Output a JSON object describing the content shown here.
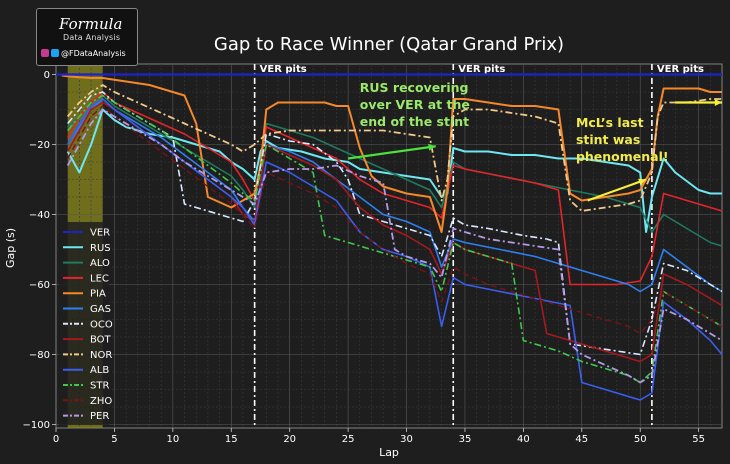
{
  "logo": {
    "brand": "Formula",
    "subtitle": "Data Analysis",
    "handle": "@FDataAnalysis",
    "icons": [
      "instagram-icon",
      "twitter-icon"
    ]
  },
  "chart_data": {
    "type": "line",
    "title": "Gap to Race Winner (Qatar Grand Prix)",
    "xlabel": "Lap",
    "ylabel": "Gap (s)",
    "xlim": [
      0,
      57
    ],
    "ylim": [
      -101,
      3
    ],
    "xticks": [
      0,
      5,
      10,
      15,
      20,
      25,
      30,
      35,
      40,
      45,
      50,
      55
    ],
    "yticks": [
      0,
      -20,
      -40,
      -60,
      -80,
      -100
    ],
    "grid": true,
    "legend_position": "left",
    "background": "#1e1e1e",
    "highlight_band": {
      "x": [
        1,
        4
      ],
      "color": "#8a8a1e"
    },
    "pit_markers": [
      {
        "x": 17,
        "label": "VER pits"
      },
      {
        "x": 34,
        "label": "VER pits"
      },
      {
        "x": 51,
        "label": "VER pits"
      }
    ],
    "annotations": [
      {
        "text": "RUS recovering over VER at the end of the stint",
        "lines": [
          "RUS recovering",
          "over VER at the",
          "end of the stint"
        ],
        "color": "#9be86a",
        "x": 26,
        "y": -5,
        "arrow_from": [
          25,
          -24
        ],
        "arrow_to": [
          32.5,
          -20.5
        ],
        "arrow_color": "#4ee03c"
      },
      {
        "text": "McL’s last stint was phenomenal!",
        "lines": [
          "McL’s last",
          "stint was",
          "phenomenal!"
        ],
        "color": "#f2ec50",
        "x": 44.5,
        "y": -15,
        "arrow_from": [
          45.5,
          -36
        ],
        "arrow_to": [
          50.5,
          -30
        ],
        "arrow2_from": [
          53,
          -8
        ],
        "arrow2_to": [
          57,
          -8
        ],
        "arrow_color": "#f7ef3a"
      }
    ],
    "series": [
      {
        "name": "VER",
        "color": "#1c24c8",
        "dash": "",
        "width": 2.2,
        "x": [
          0,
          57
        ],
        "y": [
          0,
          0
        ]
      },
      {
        "name": "RUS",
        "color": "#6fe7f2",
        "dash": "",
        "width": 2,
        "x": [
          1,
          2,
          3,
          4,
          5,
          6,
          8,
          10,
          12,
          14,
          15,
          16,
          17,
          17.5,
          18,
          19,
          21,
          23,
          25,
          26,
          28,
          30,
          32,
          33,
          33.5,
          34,
          35,
          37,
          39,
          41,
          43,
          45,
          47,
          49,
          50,
          50.5,
          51,
          52,
          53,
          55,
          56,
          57
        ],
        "y": [
          -22,
          -28,
          -20,
          -10,
          -13,
          -15,
          -17,
          -18,
          -20,
          -22,
          -25,
          -27,
          -30,
          -22,
          -19,
          -21,
          -22,
          -24,
          -25,
          -27,
          -28,
          -29,
          -30,
          -35,
          -34,
          -21,
          -22,
          -22,
          -23,
          -23,
          -24,
          -24,
          -25,
          -26,
          -28,
          -45,
          -35,
          -24,
          -28,
          -33,
          -34,
          -34
        ]
      },
      {
        "name": "ALO",
        "color": "#1f7a62",
        "dash": "",
        "width": 1.6,
        "x": [
          1,
          2,
          3,
          4,
          5,
          7,
          9,
          11,
          13,
          15,
          16,
          17,
          18,
          20,
          22,
          24,
          26,
          28,
          30,
          32,
          33,
          34,
          35,
          38,
          41,
          44,
          47,
          50,
          51,
          52,
          54,
          56,
          57
        ],
        "y": [
          -15,
          -12,
          -8,
          -6,
          -9,
          -13,
          -17,
          -21,
          -25,
          -29,
          -33,
          -38,
          -14,
          -16,
          -18,
          -21,
          -24,
          -27,
          -30,
          -33,
          -38,
          -25,
          -27,
          -29,
          -31,
          -33,
          -35,
          -38,
          -45,
          -40,
          -44,
          -48,
          -49
        ]
      },
      {
        "name": "LEC",
        "color": "#e4242a",
        "dash": "",
        "width": 1.6,
        "x": [
          1,
          2,
          3,
          4,
          5,
          7,
          9,
          11,
          13,
          15,
          16,
          17,
          18,
          20,
          22,
          24,
          26,
          28,
          30,
          32,
          33,
          34,
          35,
          38,
          41,
          43,
          44,
          46,
          48,
          50,
          51,
          52,
          54,
          56,
          57
        ],
        "y": [
          -18,
          -12,
          -8,
          -5,
          -8,
          -11,
          -14,
          -17,
          -21,
          -25,
          -30,
          -36,
          -15,
          -18,
          -21,
          -24,
          -30,
          -34,
          -36,
          -38,
          -41,
          -26,
          -27,
          -29,
          -31,
          -33,
          -60,
          -60,
          -60,
          -59,
          -52,
          -34,
          -36,
          -38,
          -39
        ]
      },
      {
        "name": "PIA",
        "color": "#f5882a",
        "dash": "",
        "width": 2,
        "x": [
          0.5,
          1,
          2,
          3,
          4,
          5,
          6,
          7,
          8,
          9,
          10,
          11,
          12,
          13,
          15,
          16,
          17,
          17.5,
          18,
          19,
          21,
          23,
          24,
          25,
          26,
          27,
          28,
          30,
          32,
          33,
          33.5,
          34,
          35,
          37,
          39,
          41,
          43,
          44,
          45,
          47,
          49,
          50,
          51,
          51.5,
          52,
          53,
          55,
          56,
          57
        ],
        "y": [
          -0.3,
          -0.5,
          -0.8,
          -1,
          -1,
          -1.5,
          -2,
          -2.5,
          -3,
          -4,
          -5,
          -6,
          -14,
          -35,
          -38,
          -36,
          -34,
          -26,
          -10,
          -8,
          -8,
          -8,
          -9,
          -9,
          -21,
          -29,
          -32,
          -34,
          -35,
          -45,
          -33,
          -7,
          -7,
          -8,
          -9,
          -9,
          -10,
          -34,
          -36,
          -35,
          -34,
          -33,
          -27,
          -12,
          -4,
          -4,
          -4,
          -5,
          -5
        ]
      },
      {
        "name": "GAS",
        "color": "#2e7ff2",
        "dash": "",
        "width": 1.6,
        "x": [
          1,
          2,
          3,
          4,
          5,
          7,
          9,
          11,
          13,
          15,
          16,
          17,
          18,
          20,
          22,
          24,
          26,
          28,
          30,
          32,
          33,
          34,
          35,
          38,
          41,
          44,
          47,
          49,
          50,
          51,
          52,
          54,
          56,
          57
        ],
        "y": [
          -20,
          -15,
          -10,
          -7,
          -10,
          -14,
          -18,
          -23,
          -28,
          -33,
          -38,
          -42,
          -20,
          -22,
          -25,
          -30,
          -35,
          -40,
          -42,
          -45,
          -55,
          -47,
          -48,
          -50,
          -52,
          -55,
          -58,
          -60,
          -62,
          -60,
          -50,
          -55,
          -60,
          -62
        ]
      },
      {
        "name": "OCO",
        "color": "#d9e9ff",
        "dash": "7,3,2,3",
        "width": 1.6,
        "x": [
          1,
          2,
          3,
          4,
          5,
          7,
          9,
          10,
          11,
          13,
          15,
          16,
          17,
          18,
          20,
          22,
          24,
          25,
          26,
          28,
          30,
          32,
          33,
          34,
          35,
          37,
          40,
          42,
          43,
          44,
          46,
          48,
          50,
          51,
          52,
          54,
          56,
          57
        ],
        "y": [
          -14,
          -10,
          -6,
          -5,
          -8,
          -12,
          -16,
          -18,
          -37,
          -39,
          -41,
          -42,
          -36,
          -17,
          -19,
          -20,
          -25,
          -30,
          -40,
          -42,
          -44,
          -46,
          -52,
          -41,
          -43,
          -44,
          -46,
          -47,
          -48,
          -77,
          -78,
          -79,
          -80,
          -70,
          -54,
          -56,
          -60,
          -62
        ]
      },
      {
        "name": "BOT",
        "color": "#a8181e",
        "dash": "",
        "width": 1.6,
        "x": [
          1,
          2,
          3,
          4,
          5,
          7,
          9,
          11,
          13,
          15,
          16,
          17,
          18,
          20,
          22,
          24,
          26,
          28,
          30,
          32,
          33,
          34,
          35,
          37,
          39,
          41,
          42,
          43,
          45,
          47,
          49,
          50,
          51,
          52,
          54,
          56,
          57
        ],
        "y": [
          -22,
          -16,
          -10,
          -8,
          -10,
          -15,
          -20,
          -25,
          -30,
          -35,
          -40,
          -42,
          -20,
          -23,
          -26,
          -30,
          -38,
          -43,
          -46,
          -50,
          -57,
          -48,
          -50,
          -52,
          -54,
          -56,
          -74,
          -75,
          -77,
          -79,
          -81,
          -82,
          -80,
          -57,
          -60,
          -64,
          -66
        ]
      },
      {
        "name": "NOR",
        "color": "#f2c88a",
        "dash": "7,3,2,3",
        "width": 1.8,
        "x": [
          1,
          2,
          3,
          4,
          5,
          7,
          9,
          11,
          13,
          15,
          16,
          17,
          18,
          20,
          22,
          24,
          26,
          28,
          30,
          32,
          33,
          33.5,
          34,
          35,
          37,
          39,
          41,
          43,
          44,
          45,
          47,
          49,
          50,
          51,
          51.5,
          52,
          54,
          56,
          57
        ],
        "y": [
          -12,
          -8,
          -5,
          -3,
          -5,
          -8,
          -11,
          -14,
          -17,
          -20,
          -22,
          -20,
          -17,
          -16,
          -16,
          -16,
          -16,
          -16,
          -17,
          -18,
          -36,
          -30,
          -12,
          -10,
          -10,
          -11,
          -12,
          -14,
          -36,
          -39,
          -38,
          -37,
          -36,
          -28,
          -12,
          -8,
          -8,
          -7,
          -7
        ]
      },
      {
        "name": "ALB",
        "color": "#3a5ef0",
        "dash": "",
        "width": 1.6,
        "x": [
          1,
          2,
          3,
          4,
          5,
          7,
          9,
          11,
          13,
          15,
          16,
          17,
          18,
          20,
          22,
          24,
          26,
          28,
          30,
          32,
          33,
          34,
          35,
          38,
          41,
          44,
          45,
          47,
          49,
          50,
          51,
          52,
          54,
          56,
          57
        ],
        "y": [
          -20,
          -14,
          -9,
          -7,
          -10,
          -15,
          -20,
          -25,
          -30,
          -35,
          -38,
          -43,
          -25,
          -28,
          -32,
          -36,
          -45,
          -50,
          -52,
          -55,
          -72,
          -58,
          -60,
          -62,
          -64,
          -66,
          -88,
          -90,
          -92,
          -93,
          -91,
          -65,
          -70,
          -76,
          -80
        ]
      },
      {
        "name": "STR",
        "color": "#40c84c",
        "dash": "7,3,2,3",
        "width": 1.6,
        "x": [
          1,
          2,
          3,
          4,
          5,
          7,
          9,
          11,
          13,
          15,
          16,
          17,
          18,
          20,
          22,
          23,
          24,
          26,
          28,
          30,
          32,
          33,
          34,
          35,
          37,
          39,
          40,
          41,
          43,
          45,
          47,
          49,
          50,
          51,
          52,
          54,
          56,
          57
        ],
        "y": [
          -16,
          -12,
          -8,
          -6,
          -8,
          -12,
          -16,
          -21,
          -26,
          -31,
          -34,
          -36,
          -20,
          -24,
          -28,
          -46,
          -47,
          -49,
          -51,
          -53,
          -55,
          -62,
          -48,
          -50,
          -52,
          -54,
          -76,
          -77,
          -79,
          -82,
          -84,
          -86,
          -88,
          -85,
          -62,
          -66,
          -70,
          -72
        ]
      },
      {
        "name": "ZHO",
        "color": "#7a1216",
        "dash": "6,4",
        "width": 1.4,
        "x": [
          1,
          2,
          3,
          4,
          5,
          7,
          9,
          11,
          13,
          15,
          16,
          17,
          18,
          20,
          22,
          24,
          26,
          28,
          30,
          32,
          33,
          34,
          35,
          37,
          39,
          41,
          43,
          45,
          47,
          49,
          50,
          51,
          52,
          54,
          56,
          57
        ],
        "y": [
          -24,
          -18,
          -12,
          -9,
          -12,
          -17,
          -22,
          -27,
          -32,
          -37,
          -40,
          -44,
          -28,
          -31,
          -34,
          -38,
          -45,
          -50,
          -54,
          -57,
          -65,
          -55,
          -57,
          -60,
          -62,
          -64,
          -66,
          -68,
          -70,
          -72,
          -74,
          -70,
          -62,
          -66,
          -70,
          -72
        ]
      },
      {
        "name": "PER",
        "color": "#b39ae8",
        "dash": "7,3,2,3",
        "width": 1.8,
        "x": [
          1,
          2,
          3,
          4,
          5,
          7,
          9,
          11,
          13,
          15,
          16,
          17,
          18,
          20,
          22,
          24,
          26,
          28,
          29,
          30,
          32,
          33,
          34,
          35,
          37,
          39,
          41,
          43,
          44,
          45,
          47,
          49,
          50,
          51,
          52,
          54,
          56,
          57
        ],
        "y": [
          -26,
          -20,
          -14,
          -10,
          -12,
          -16,
          -20,
          -25,
          -29,
          -33,
          -35,
          -37,
          -28,
          -27,
          -27,
          -26,
          -29,
          -31,
          -50,
          -52,
          -54,
          -58,
          -44,
          -45,
          -47,
          -48,
          -49,
          -50,
          -77,
          -80,
          -83,
          -86,
          -88,
          -86,
          -67,
          -70,
          -74,
          -76
        ]
      }
    ]
  }
}
